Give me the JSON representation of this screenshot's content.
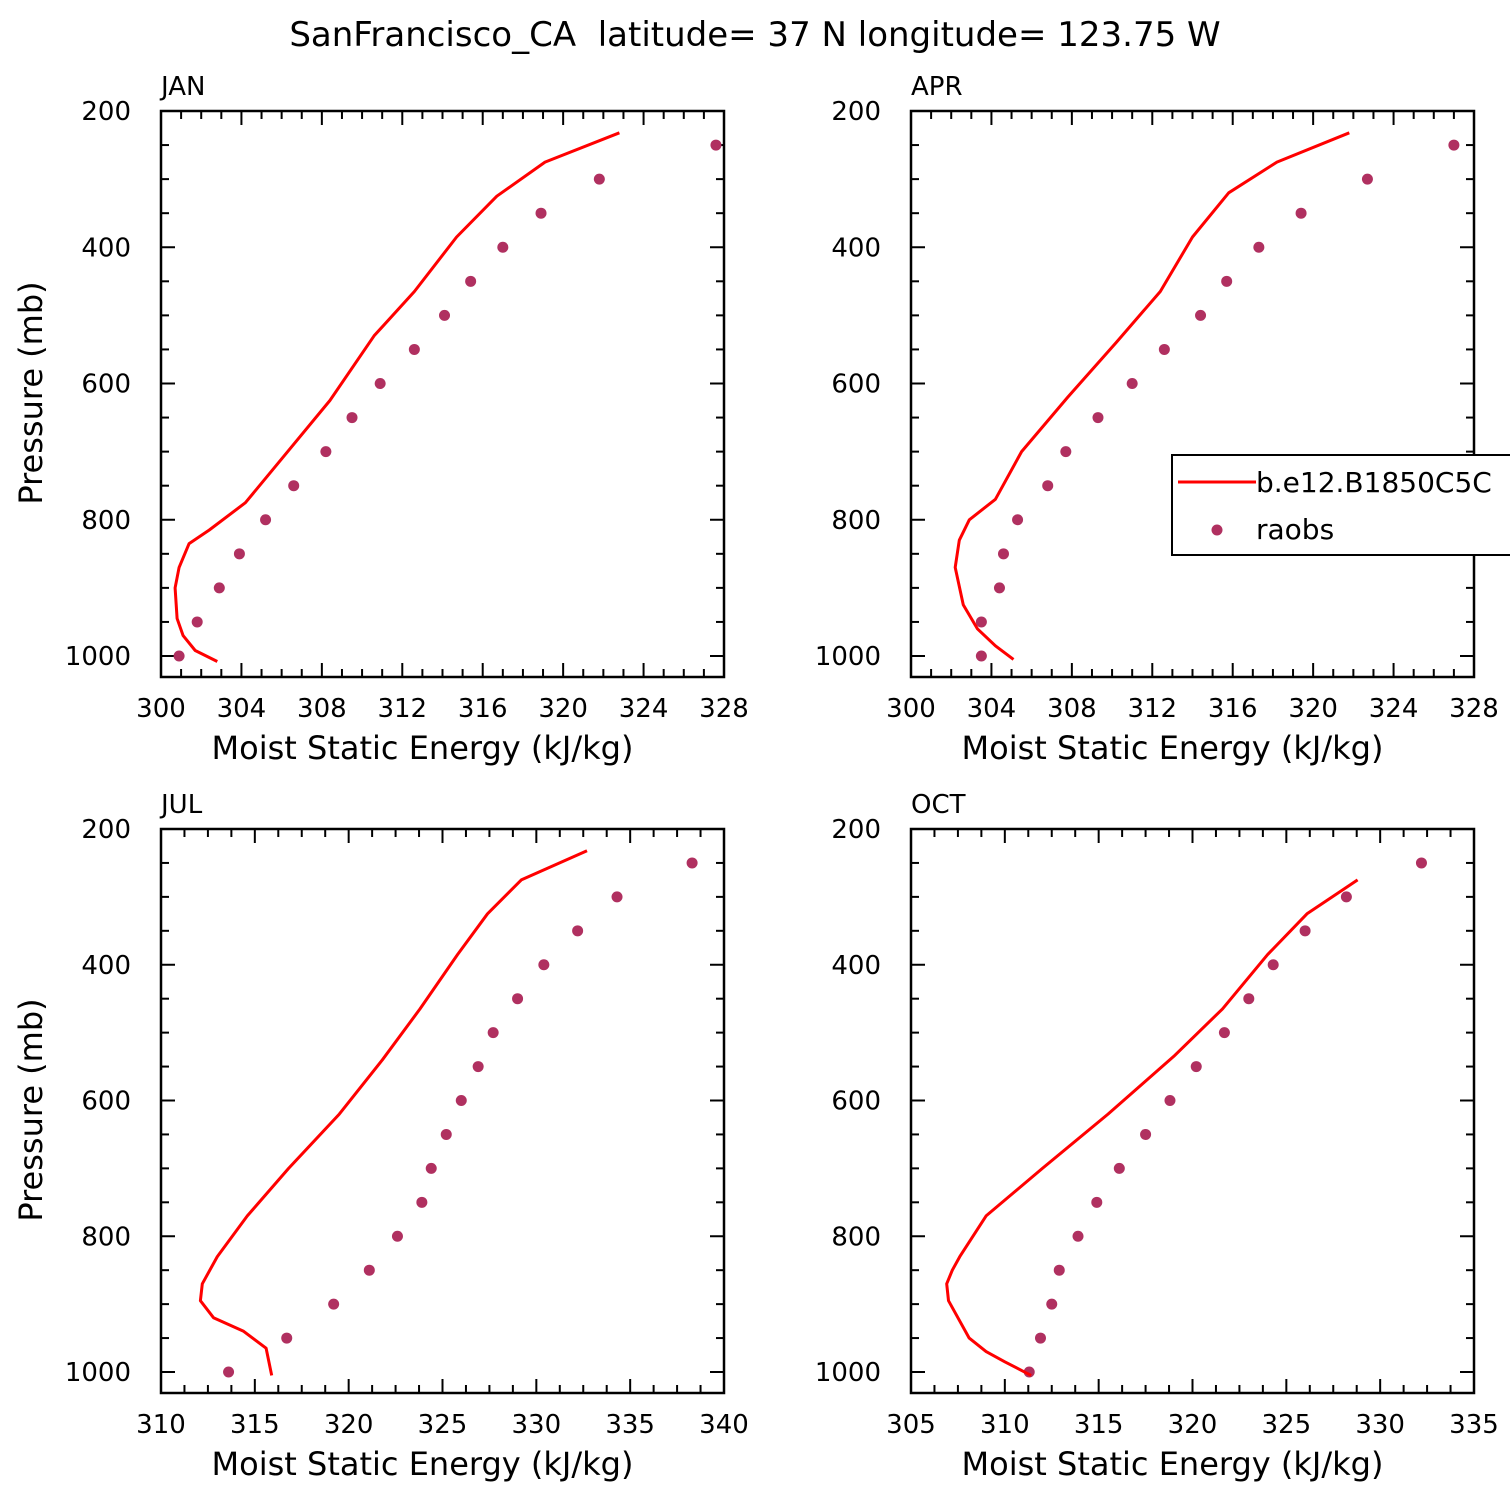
{
  "title": "SanFrancisco_CA  latitude= 37 N longitude= 123.75 W",
  "colors": {
    "model_line": "#ff0000",
    "raobs_dot": "#b03060",
    "axis": "#000000"
  },
  "legend": {
    "line_label": "b.e12.B1850C5C",
    "dot_label": "raobs"
  },
  "chart_data": [
    {
      "type": "line",
      "panel_label": "JAN",
      "xlabel": "Moist Static Energy (kJ/kg)",
      "ylabel": "Pressure (mb)",
      "xlim": [
        300,
        328
      ],
      "ylim": [
        1000,
        200
      ],
      "xticks": [
        300,
        304,
        308,
        312,
        316,
        320,
        324,
        328
      ],
      "yticks": [
        200,
        400,
        600,
        800,
        1000
      ],
      "series": [
        {
          "name": "b.e12.B1850C5C",
          "kind": "line",
          "x": [
            302.8,
            301.7,
            301.1,
            300.8,
            300.7,
            300.9,
            301.4,
            302.4,
            304.2,
            306.3,
            308.4,
            310.6,
            312.6,
            314.7,
            316.7,
            319.1,
            322.8
          ],
          "y": [
            1008,
            992,
            970,
            945,
            900,
            870,
            835,
            815,
            775,
            700,
            625,
            530,
            465,
            385,
            325,
            275,
            232
          ]
        },
        {
          "name": "raobs",
          "kind": "scatter",
          "x": [
            300.9,
            301.8,
            302.9,
            303.9,
            305.2,
            306.6,
            308.2,
            309.5,
            310.9,
            312.6,
            314.1,
            315.4,
            317.0,
            318.9,
            321.8,
            327.6
          ],
          "y": [
            1000,
            950,
            900,
            850,
            800,
            750,
            700,
            650,
            600,
            550,
            500,
            450,
            400,
            350,
            300,
            250
          ]
        }
      ]
    },
    {
      "type": "line",
      "panel_label": "APR",
      "xlabel": "Moist Static Energy (kJ/kg)",
      "ylabel": "",
      "xlim": [
        300,
        328
      ],
      "ylim": [
        1000,
        200
      ],
      "xticks": [
        300,
        304,
        308,
        312,
        316,
        320,
        324,
        328
      ],
      "yticks": [
        200,
        400,
        600,
        800,
        1000
      ],
      "legend_position": "right",
      "series": [
        {
          "name": "b.e12.B1850C5C",
          "kind": "line",
          "x": [
            305.1,
            304.2,
            303.3,
            302.6,
            302.2,
            302.4,
            302.9,
            304.2,
            305.5,
            307.8,
            310.2,
            312.4,
            314.0,
            315.8,
            318.2,
            321.8
          ],
          "y": [
            1005,
            985,
            960,
            925,
            870,
            830,
            800,
            770,
            700,
            620,
            540,
            465,
            385,
            320,
            275,
            232
          ]
        },
        {
          "name": "raobs",
          "kind": "scatter",
          "x": [
            303.5,
            303.5,
            304.4,
            304.6,
            305.3,
            306.8,
            307.7,
            309.3,
            311.0,
            312.6,
            314.4,
            315.7,
            317.3,
            319.4,
            322.7,
            327.0
          ],
          "y": [
            1000,
            950,
            900,
            850,
            800,
            750,
            700,
            650,
            600,
            550,
            500,
            450,
            400,
            350,
            300,
            250
          ]
        }
      ]
    },
    {
      "type": "line",
      "panel_label": "JUL",
      "xlabel": "Moist Static Energy (kJ/kg)",
      "ylabel": "Pressure (mb)",
      "xlim": [
        310,
        340
      ],
      "ylim": [
        1000,
        200
      ],
      "xticks": [
        310,
        315,
        320,
        325,
        330,
        335,
        340
      ],
      "yticks": [
        200,
        400,
        600,
        800,
        1000
      ],
      "series": [
        {
          "name": "b.e12.B1850C5C",
          "kind": "line",
          "x": [
            315.9,
            315.6,
            314.4,
            312.8,
            312.1,
            312.2,
            313.0,
            314.6,
            316.8,
            319.5,
            321.8,
            323.8,
            325.8,
            327.4,
            329.2,
            332.7
          ],
          "y": [
            1005,
            965,
            940,
            920,
            895,
            870,
            830,
            770,
            700,
            620,
            540,
            465,
            385,
            325,
            275,
            232
          ]
        },
        {
          "name": "raobs",
          "kind": "scatter",
          "x": [
            313.6,
            316.7,
            319.2,
            321.1,
            322.6,
            323.9,
            324.4,
            325.2,
            326.0,
            326.9,
            327.7,
            329.0,
            330.4,
            332.2,
            334.3,
            338.3
          ],
          "y": [
            1000,
            950,
            900,
            850,
            800,
            750,
            700,
            650,
            600,
            550,
            500,
            450,
            400,
            350,
            300,
            250
          ]
        }
      ]
    },
    {
      "type": "line",
      "panel_label": "OCT",
      "xlabel": "Moist Static Energy (kJ/kg)",
      "ylabel": "",
      "xlim": [
        305,
        335
      ],
      "ylim": [
        1000,
        200
      ],
      "xticks": [
        305,
        310,
        315,
        320,
        325,
        330,
        335
      ],
      "yticks": [
        200,
        400,
        600,
        800,
        1000
      ],
      "series": [
        {
          "name": "b.e12.B1850C5C",
          "kind": "line",
          "x": [
            311.4,
            310.0,
            309.0,
            308.1,
            307.5,
            307.0,
            306.9,
            307.2,
            307.6,
            309.0,
            312.0,
            315.5,
            319.0,
            321.6,
            324.0,
            326.1,
            328.8
          ],
          "y": [
            1005,
            985,
            970,
            950,
            920,
            895,
            870,
            850,
            830,
            770,
            700,
            620,
            535,
            465,
            385,
            325,
            275
          ]
        },
        {
          "name": "raobs",
          "kind": "scatter",
          "x": [
            311.3,
            311.9,
            312.5,
            312.9,
            313.9,
            314.9,
            316.1,
            317.5,
            318.8,
            320.2,
            321.7,
            323.0,
            324.3,
            326.0,
            328.2,
            332.2
          ],
          "y": [
            1000,
            950,
            900,
            850,
            800,
            750,
            700,
            650,
            600,
            550,
            500,
            450,
            400,
            350,
            300,
            250
          ]
        }
      ]
    }
  ]
}
